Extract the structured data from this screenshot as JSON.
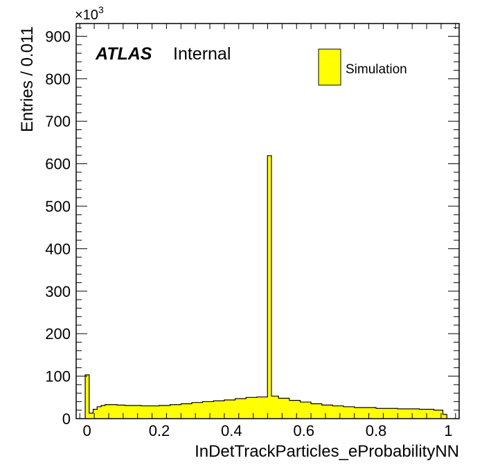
{
  "chart_data": {
    "type": "histogram",
    "xlabel": "InDetTrackParticles_eProbabilityNN",
    "ylabel": "Entries / 0.011",
    "y_scale_factor": "×10",
    "y_scale_exponent": "3",
    "xlim": [
      -0.03,
      1.03
    ],
    "ylim": [
      0,
      930
    ],
    "x_ticks": [
      0,
      0.2,
      0.4,
      0.6,
      0.8,
      1
    ],
    "x_tick_labels": [
      "0",
      "0.2",
      "0.4",
      "0.6",
      "0.8",
      "1"
    ],
    "y_ticks": [
      0,
      100,
      200,
      300,
      400,
      500,
      600,
      700,
      800,
      900
    ],
    "y_tick_labels": [
      "0",
      "100",
      "200",
      "300",
      "400",
      "500",
      "600",
      "700",
      "800",
      "900"
    ],
    "bin_width": 0.011,
    "bins": [
      [
        -0.005,
        0.006,
        103
      ],
      [
        0.006,
        0.017,
        13
      ],
      [
        0.017,
        0.028,
        22
      ],
      [
        0.028,
        0.039,
        28
      ],
      [
        0.039,
        0.05,
        31
      ],
      [
        0.05,
        0.061,
        33
      ],
      [
        0.061,
        0.083,
        33
      ],
      [
        0.083,
        0.105,
        32
      ],
      [
        0.105,
        0.15,
        31
      ],
      [
        0.15,
        0.2,
        30
      ],
      [
        0.2,
        0.23,
        31
      ],
      [
        0.23,
        0.26,
        33
      ],
      [
        0.26,
        0.29,
        35
      ],
      [
        0.29,
        0.32,
        38
      ],
      [
        0.32,
        0.35,
        40
      ],
      [
        0.35,
        0.38,
        42
      ],
      [
        0.38,
        0.41,
        44
      ],
      [
        0.41,
        0.44,
        47
      ],
      [
        0.44,
        0.47,
        50
      ],
      [
        0.47,
        0.4995,
        51
      ],
      [
        0.4995,
        0.5105,
        619
      ],
      [
        0.5105,
        0.53,
        53
      ],
      [
        0.53,
        0.56,
        48
      ],
      [
        0.56,
        0.59,
        43
      ],
      [
        0.59,
        0.62,
        39
      ],
      [
        0.62,
        0.65,
        35
      ],
      [
        0.65,
        0.68,
        32
      ],
      [
        0.68,
        0.71,
        30
      ],
      [
        0.71,
        0.74,
        28
      ],
      [
        0.74,
        0.8,
        26
      ],
      [
        0.8,
        0.86,
        24
      ],
      [
        0.86,
        0.92,
        23
      ],
      [
        0.92,
        0.96,
        22
      ],
      [
        0.96,
        0.985,
        20
      ],
      [
        0.985,
        0.996,
        10
      ]
    ],
    "series": [
      {
        "name": "Simulation",
        "fill": "#ffff00",
        "stroke": "#000000"
      }
    ],
    "legend_position": "top-right",
    "grid": false
  },
  "atlas": {
    "label": "ATLAS",
    "status": "Internal"
  },
  "legend": {
    "entry": "Simulation"
  }
}
